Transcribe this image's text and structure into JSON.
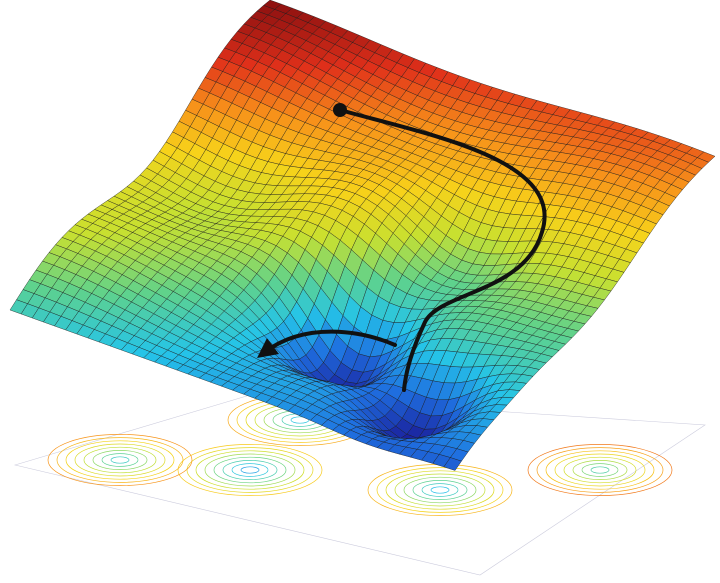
{
  "colors": {
    "background": "#ffffff",
    "mesh_line": "#1a1a1a",
    "path": "#111111",
    "colormap": [
      "#1a1f9c",
      "#1f6fe0",
      "#25c4e8",
      "#5fd28c",
      "#c8e030",
      "#f7d21a",
      "#f7901a",
      "#e0301a",
      "#8c1010"
    ]
  },
  "icons": {
    "start_marker": "start-dot-icon",
    "end_marker": "arrowhead-icon"
  }
}
